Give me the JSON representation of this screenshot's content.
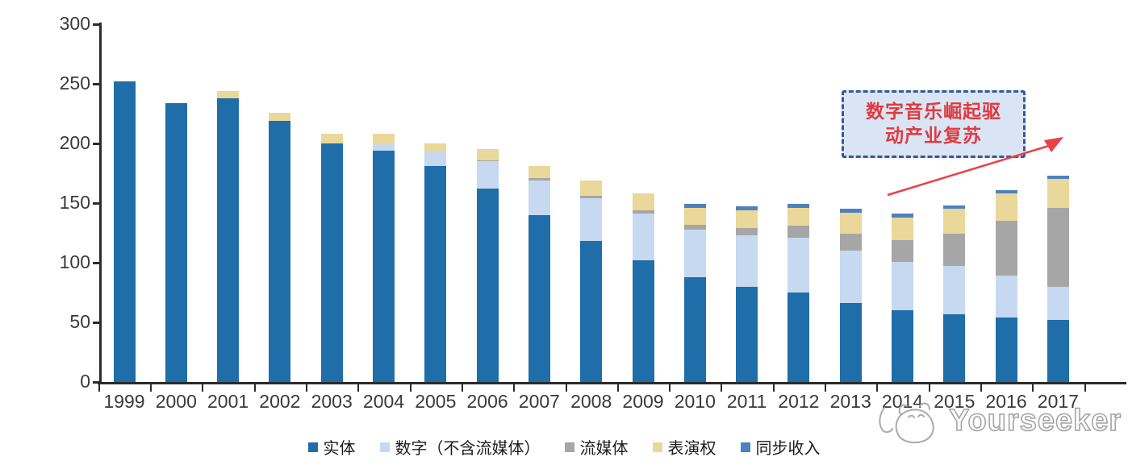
{
  "chart_data": {
    "type": "bar",
    "stacked": true,
    "title": "",
    "xlabel": "",
    "ylabel": "",
    "ylim": [
      0,
      300
    ],
    "yticks": [
      0,
      50,
      100,
      150,
      200,
      250,
      300
    ],
    "grid": false,
    "legend_position": "bottom",
    "categories": [
      "1999",
      "2000",
      "2001",
      "2002",
      "2003",
      "2004",
      "2005",
      "2006",
      "2007",
      "2008",
      "2009",
      "2010",
      "2011",
      "2012",
      "2013",
      "2014",
      "2015",
      "2016",
      "2017"
    ],
    "series": [
      {
        "name": "实体",
        "color": "#1f6ea9",
        "values": [
          252,
          234,
          238,
          219,
          200,
          194,
          181,
          162,
          140,
          118,
          102,
          88,
          80,
          75,
          66,
          60,
          57,
          54,
          52
        ]
      },
      {
        "name": "数字（不含流媒体）",
        "color": "#c6d9f0",
        "values": [
          0,
          0,
          0,
          0,
          0,
          5,
          12,
          23,
          29,
          36,
          39,
          40,
          43,
          46,
          44,
          41,
          40,
          35,
          28
        ]
      },
      {
        "name": "流媒体",
        "color": "#a6a6a6",
        "values": [
          0,
          0,
          0,
          0,
          0,
          0,
          0,
          1,
          2,
          2,
          3,
          4,
          6,
          10,
          14,
          18,
          27,
          46,
          66
        ]
      },
      {
        "name": "表演权",
        "color": "#ead79a",
        "values": [
          0,
          0,
          6,
          7,
          8,
          9,
          7,
          9,
          10,
          13,
          14,
          14,
          15,
          15,
          18,
          19,
          21,
          23,
          24
        ]
      },
      {
        "name": "同步收入",
        "color": "#4d82be",
        "values": [
          0,
          0,
          0,
          0,
          0,
          0,
          0,
          0,
          0,
          0,
          0,
          3,
          3,
          3,
          3,
          3,
          3,
          3,
          3
        ]
      }
    ],
    "totals": [
      252,
      234,
      244,
      226,
      208,
      208,
      200,
      195,
      181,
      169,
      158,
      149,
      147,
      149,
      145,
      141,
      148,
      161,
      173
    ]
  },
  "annotation": {
    "line1": "数字音乐崛起驱",
    "line2": "动产业复苏",
    "text_color": "#e03a3e",
    "border_color": "#3a5795",
    "fill_color": "#d9e5f5",
    "arrow_color": "#e84149"
  },
  "watermark": {
    "brand": "Yourseeker",
    "logo": "cat-doodle-logo",
    "color": "#a5a5a5"
  }
}
